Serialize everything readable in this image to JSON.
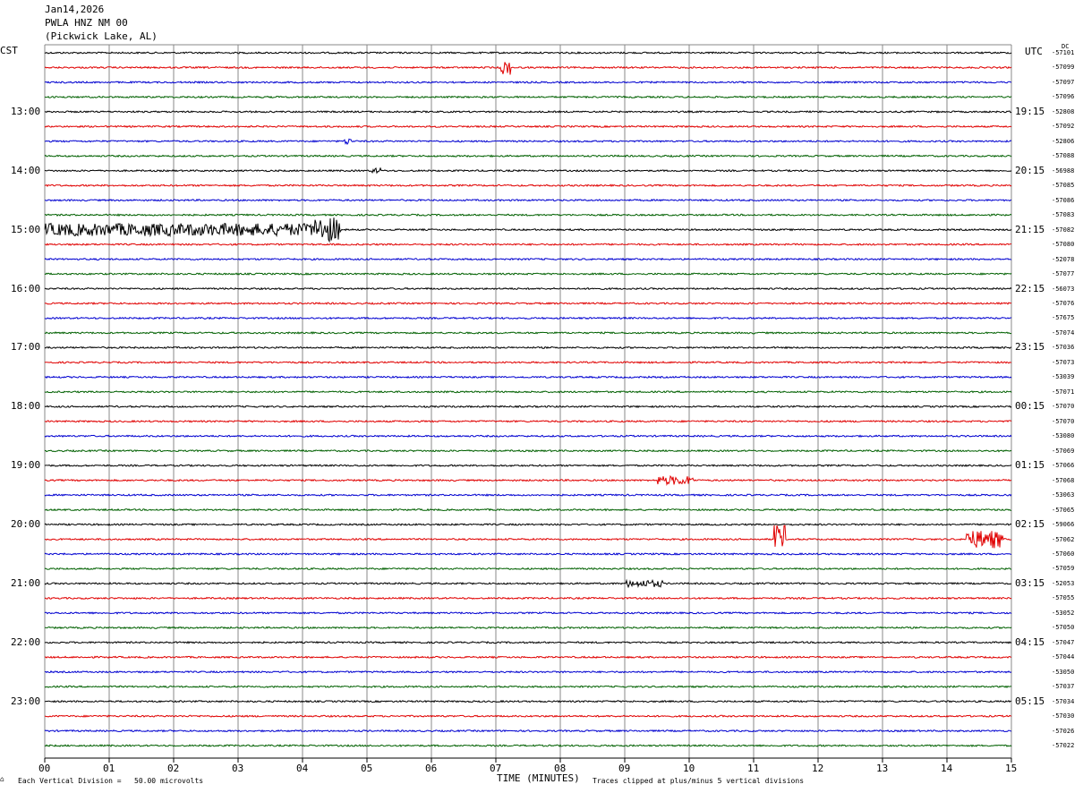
{
  "header": {
    "date": "Jan14,2026",
    "station": "PWLA HNZ NM 00",
    "location": "(Pickwick Lake, AL)"
  },
  "left_zone": "CST",
  "right_zone": "UTC",
  "right_corner": "DC",
  "left_hours": [
    "13:00",
    "14:00",
    "15:00",
    "16:00",
    "17:00",
    "18:00",
    "19:00",
    "20:00",
    "21:00",
    "22:00",
    "23:00"
  ],
  "right_hours": [
    "19:15",
    "20:15",
    "21:15",
    "22:15",
    "23:15",
    "00:15",
    "01:15",
    "02:15",
    "03:15",
    "04:15",
    "05:15"
  ],
  "x_ticks": [
    "00",
    "01",
    "02",
    "03",
    "04",
    "05",
    "06",
    "07",
    "08",
    "09",
    "10",
    "11",
    "12",
    "13",
    "14",
    "15"
  ],
  "x_axis_label": "TIME (MINUTES)",
  "footer_left": "Each Vertical Division =   50.00 microvolts",
  "footer_right": "Traces clipped at plus/minus 5 vertical divisions",
  "trace_colors": [
    "#000000",
    "#e00000",
    "#0000d0",
    "#006000"
  ],
  "dc_values": [
    "-57101",
    "-57099",
    "-57097",
    "-57096",
    "-52808",
    "-57092",
    "-52806",
    "-57088",
    "-56988",
    "-57085",
    "-57086",
    "-57083",
    "-57082",
    "-57080",
    "-52078",
    "-57077",
    "-56073",
    "-57076",
    "-57675",
    "-57074",
    "-57036",
    "-57073",
    "-53039",
    "-57071",
    "-57070",
    "-57070",
    "-53080",
    "-57069",
    "-57066",
    "-57068",
    "-53063",
    "-57065",
    "-59066",
    "-57062",
    "-57060",
    "-57059",
    "-52053",
    "-57055",
    "-53052",
    "-57050",
    "-57047",
    "-57044",
    "-53050",
    "-57037",
    "-57034",
    "-57030",
    "-57026",
    "-57022"
  ]
}
